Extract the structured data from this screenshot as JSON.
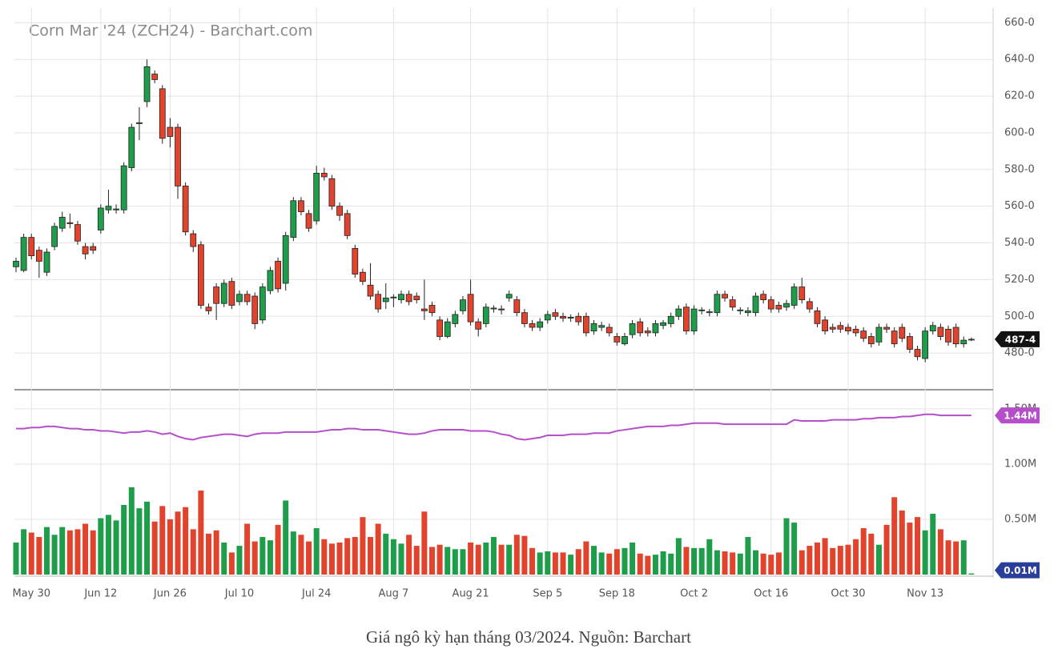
{
  "chart_data": [
    {
      "type": "candlestick",
      "title": "Corn Mar '24 (ZCH24) - Barchart.com",
      "categories": [
        null,
        null,
        "May 30",
        null,
        null,
        null,
        null,
        null,
        null,
        null,
        null,
        "Jun 12",
        null,
        null,
        null,
        null,
        null,
        null,
        null,
        null,
        "Jun 26",
        null,
        null,
        null,
        null,
        null,
        null,
        null,
        null,
        "Jul 10",
        null,
        null,
        null,
        null,
        null,
        null,
        null,
        null,
        null,
        "Jul 24",
        null,
        null,
        null,
        null,
        null,
        null,
        null,
        null,
        null,
        "Aug 7",
        null,
        null,
        null,
        null,
        null,
        null,
        null,
        null,
        null,
        "Aug 21",
        null,
        null,
        null,
        null,
        null,
        null,
        null,
        null,
        null,
        "Sep 5",
        null,
        null,
        null,
        null,
        null,
        null,
        null,
        null,
        "Sep 18",
        null,
        null,
        null,
        null,
        null,
        null,
        null,
        null,
        null,
        "Oct 2",
        null,
        null,
        null,
        null,
        null,
        null,
        null,
        null,
        null,
        "Oct 16",
        null,
        null,
        null,
        null,
        null,
        null,
        null,
        null,
        null,
        "Oct 30",
        null,
        null,
        null,
        null,
        null,
        null,
        null,
        null,
        null,
        "Nov 13",
        null,
        null,
        null,
        null,
        null,
        null
      ],
      "open": [
        527,
        525,
        543,
        536,
        524,
        538,
        548,
        551,
        550,
        538,
        538,
        547,
        558,
        558,
        558,
        581,
        605,
        617,
        632,
        624,
        603,
        603,
        571,
        545,
        539,
        505,
        516,
        507,
        519,
        508,
        512,
        511,
        498,
        514,
        530,
        518,
        543,
        563,
        556,
        552,
        578,
        575,
        560,
        556,
        537,
        524,
        517,
        512,
        508,
        510,
        509,
        512,
        511,
        504,
        506,
        498,
        489,
        496,
        503,
        512,
        497,
        496,
        504,
        504,
        510,
        509,
        502,
        496,
        494,
        498,
        502,
        500,
        499,
        500,
        500,
        492,
        494,
        494,
        489,
        485,
        490,
        497,
        492,
        491,
        495,
        496,
        500,
        505,
        492,
        503,
        502,
        502,
        512,
        509,
        503,
        502,
        502,
        512,
        509,
        506,
        505,
        506,
        516,
        508,
        503,
        498,
        494,
        495,
        494,
        493,
        492,
        489,
        486,
        494,
        492,
        494,
        489,
        482,
        477,
        492,
        494,
        493,
        494,
        485,
        487.25
      ],
      "high": [
        532,
        545,
        545,
        538,
        537,
        551,
        557,
        556,
        552,
        540,
        540,
        561,
        569,
        561,
        584,
        605,
        614,
        640,
        634,
        626,
        608,
        605,
        573,
        547,
        541,
        507,
        518,
        520,
        521,
        514,
        514,
        513,
        518,
        527,
        532,
        546,
        565,
        565,
        558,
        582,
        581,
        577,
        562,
        558,
        539,
        526,
        529,
        514,
        518,
        512,
        514,
        514,
        513,
        520,
        508,
        500,
        499,
        503,
        511,
        520,
        499,
        507,
        506,
        506,
        514,
        511,
        504,
        498,
        499,
        503,
        504,
        502,
        501,
        502,
        502,
        498,
        497,
        496,
        491,
        491,
        498,
        499,
        494,
        498,
        498,
        502,
        506,
        507,
        506,
        505,
        504,
        514,
        514,
        511,
        505,
        505,
        513,
        514,
        511,
        508,
        509,
        518,
        521,
        510,
        505,
        500,
        496,
        497,
        496,
        495,
        494,
        491,
        496,
        496,
        494,
        496,
        491,
        484,
        494,
        497,
        496,
        495,
        496,
        489,
        488.5
      ],
      "low": [
        524,
        524,
        531,
        521,
        522,
        536,
        546,
        548,
        539,
        531,
        534,
        545,
        556,
        556,
        556,
        579,
        596,
        614,
        627,
        594,
        592,
        564,
        544,
        535,
        504,
        501,
        498,
        505,
        504,
        506,
        506,
        493,
        496,
        512,
        513,
        514,
        541,
        555,
        546,
        550,
        574,
        558,
        552,
        542,
        521,
        517,
        509,
        502,
        504,
        505,
        507,
        506,
        507,
        498,
        500,
        487,
        488,
        494,
        501,
        495,
        489,
        494,
        502,
        501,
        508,
        500,
        494,
        492,
        492,
        496,
        498,
        497,
        497,
        495,
        489,
        490,
        492,
        489,
        484,
        484,
        488,
        489,
        489,
        489,
        493,
        494,
        498,
        490,
        490,
        501,
        500,
        500,
        508,
        503,
        501,
        500,
        500,
        507,
        502,
        502,
        503,
        504,
        507,
        502,
        494,
        490,
        491,
        491,
        490,
        489,
        486,
        483,
        484,
        491,
        483,
        486,
        480,
        476,
        475,
        490,
        487,
        484,
        483,
        483,
        486.5
      ],
      "close": [
        530,
        543,
        533,
        530,
        535,
        549,
        554,
        550.5,
        541,
        534,
        536,
        559,
        560,
        558.5,
        582,
        603,
        605.5,
        636,
        629,
        597,
        598,
        571,
        546,
        538,
        506,
        503,
        507,
        518,
        506,
        512,
        508,
        496,
        516,
        525,
        515,
        544,
        563,
        557,
        548,
        578,
        576,
        560,
        555,
        544,
        523,
        519,
        511,
        504,
        510,
        510.5,
        512,
        508,
        509,
        503,
        502,
        489,
        497,
        501,
        509,
        497,
        493,
        505,
        504.5,
        503.5,
        512,
        502,
        496,
        494,
        497,
        501,
        500,
        499,
        499.5,
        497,
        491,
        496,
        495,
        491,
        486,
        489,
        496,
        491,
        491,
        496,
        496.5,
        500,
        504,
        492,
        504,
        503.5,
        502.5,
        512,
        510,
        505,
        503.5,
        503,
        511,
        509,
        504,
        504,
        507,
        516,
        509,
        504,
        496,
        492,
        493,
        493,
        492,
        491,
        488,
        485,
        494,
        493,
        485,
        488,
        482,
        478,
        492,
        495,
        489,
        486,
        485,
        487,
        487.5
      ],
      "up_color": "#1e9e4a",
      "down_color": "#e2432d",
      "ylim": [
        460,
        668
      ],
      "yticks": [
        {
          "value": 480,
          "label": "480-0"
        },
        {
          "value": 500,
          "label": "500-0"
        },
        {
          "value": 520,
          "label": "520-0"
        },
        {
          "value": 540,
          "label": "540-0"
        },
        {
          "value": 560,
          "label": "560-0"
        },
        {
          "value": 580,
          "label": "580-0"
        },
        {
          "value": 600,
          "label": "600-0"
        },
        {
          "value": 620,
          "label": "620-0"
        },
        {
          "value": 640,
          "label": "640-0"
        },
        {
          "value": 660,
          "label": "660-0"
        }
      ],
      "last_label": "487-4",
      "grid": true
    },
    {
      "type": "volume",
      "values": [
        0.29,
        0.41,
        0.38,
        0.34,
        0.43,
        0.36,
        0.43,
        0.4,
        0.41,
        0.46,
        0.4,
        0.51,
        0.54,
        0.49,
        0.63,
        0.79,
        0.6,
        0.66,
        0.48,
        0.62,
        0.5,
        0.57,
        0.61,
        0.41,
        0.76,
        0.37,
        0.4,
        0.29,
        0.2,
        0.26,
        0.46,
        0.3,
        0.34,
        0.31,
        0.45,
        0.67,
        0.39,
        0.36,
        0.3,
        0.42,
        0.32,
        0.28,
        0.29,
        0.33,
        0.34,
        0.52,
        0.34,
        0.46,
        0.37,
        0.32,
        0.28,
        0.36,
        0.26,
        0.57,
        0.25,
        0.27,
        0.25,
        0.23,
        0.23,
        0.29,
        0.27,
        0.29,
        0.34,
        0.27,
        0.27,
        0.36,
        0.35,
        0.24,
        0.2,
        0.21,
        0.2,
        0.2,
        0.18,
        0.23,
        0.3,
        0.26,
        0.2,
        0.19,
        0.23,
        0.24,
        0.29,
        0.19,
        0.17,
        0.18,
        0.21,
        0.19,
        0.33,
        0.25,
        0.24,
        0.24,
        0.32,
        0.22,
        0.21,
        0.2,
        0.19,
        0.34,
        0.22,
        0.19,
        0.18,
        0.2,
        0.51,
        0.47,
        0.22,
        0.26,
        0.29,
        0.33,
        0.24,
        0.26,
        0.27,
        0.32,
        0.42,
        0.37,
        0.27,
        0.45,
        0.7,
        0.58,
        0.47,
        0.52,
        0.4,
        0.55,
        0.41,
        0.31,
        0.3,
        0.31,
        0.01
      ],
      "last_value_label": "0.01M",
      "average": [
        1.32,
        1.32,
        1.33,
        1.33,
        1.34,
        1.34,
        1.33,
        1.32,
        1.32,
        1.31,
        1.31,
        1.3,
        1.3,
        1.29,
        1.28,
        1.29,
        1.29,
        1.3,
        1.29,
        1.27,
        1.28,
        1.25,
        1.23,
        1.22,
        1.24,
        1.25,
        1.26,
        1.27,
        1.27,
        1.26,
        1.25,
        1.27,
        1.28,
        1.28,
        1.28,
        1.29,
        1.29,
        1.29,
        1.29,
        1.29,
        1.3,
        1.31,
        1.31,
        1.32,
        1.32,
        1.31,
        1.31,
        1.31,
        1.3,
        1.29,
        1.28,
        1.27,
        1.27,
        1.28,
        1.3,
        1.31,
        1.31,
        1.31,
        1.31,
        1.3,
        1.3,
        1.3,
        1.29,
        1.27,
        1.26,
        1.23,
        1.22,
        1.23,
        1.24,
        1.26,
        1.26,
        1.26,
        1.27,
        1.27,
        1.27,
        1.28,
        1.28,
        1.28,
        1.3,
        1.31,
        1.32,
        1.33,
        1.34,
        1.34,
        1.34,
        1.35,
        1.35,
        1.36,
        1.37,
        1.37,
        1.37,
        1.37,
        1.36,
        1.36,
        1.36,
        1.36,
        1.36,
        1.36,
        1.36,
        1.36,
        1.36,
        1.4,
        1.39,
        1.39,
        1.39,
        1.39,
        1.4,
        1.4,
        1.4,
        1.4,
        1.41,
        1.41,
        1.42,
        1.42,
        1.42,
        1.43,
        1.43,
        1.44,
        1.45,
        1.45,
        1.44,
        1.44,
        1.44,
        1.44,
        1.44
      ],
      "average_color": "#b54fc9",
      "average_last_label": "1.44M",
      "ylim": [
        0,
        1.6
      ],
      "yticks": [
        {
          "value": 0.5,
          "label": "0.50M"
        },
        {
          "value": 1.0,
          "label": "1.00M"
        },
        {
          "value": 1.5,
          "label": "1.50M"
        }
      ],
      "grid": true
    }
  ],
  "caption": "Giá ngô kỳ hạn tháng 03/2024. Nguồn: Barchart"
}
